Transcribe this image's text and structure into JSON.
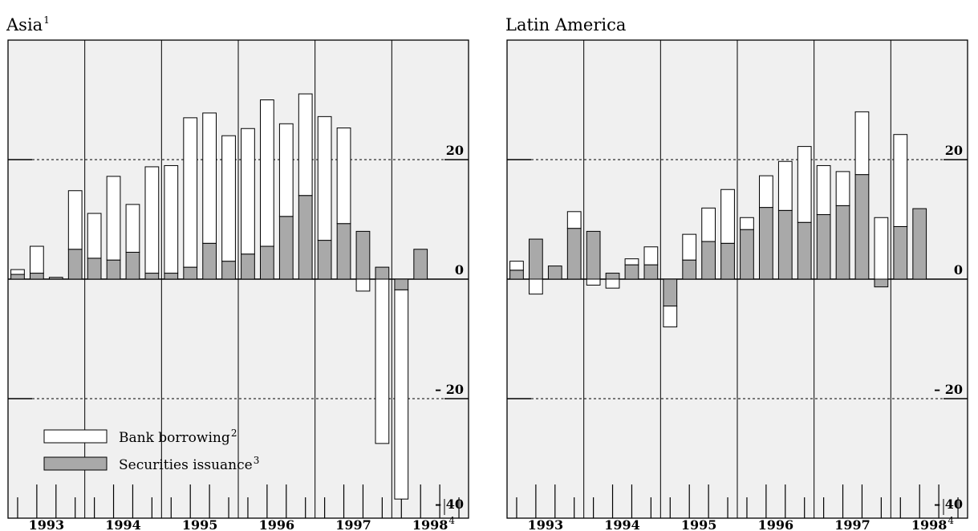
{
  "colors": {
    "plot_bg": "#f0f0f0",
    "bank": "#ffffff",
    "securities": "#a9a9a9",
    "axis": "#000000"
  },
  "legend": {
    "bank_label": "Bank borrowing",
    "bank_sup": "2",
    "sec_label": "Securities issuance",
    "sec_sup": "3"
  },
  "chart_data": [
    {
      "type": "bar",
      "stacked": true,
      "title": "Asia",
      "title_sup": "1",
      "ylim": [
        -40,
        40
      ],
      "yticks": [
        20,
        0,
        -20,
        -40
      ],
      "ytick_labels": [
        "20",
        "0",
        "– 20",
        "– 40"
      ],
      "grid": "dashed at ±20",
      "legend_position": "bottom-left",
      "years": [
        "1993",
        "1994",
        "1995",
        "1996",
        "1997",
        "1998"
      ],
      "year_sups": [
        "",
        "",
        "",
        "",
        "",
        "4"
      ],
      "quarters_per_year": 4,
      "series": [
        {
          "name": "Securities issuance",
          "values": [
            0.8,
            1,
            0.3,
            5,
            3.5,
            3.2,
            4.5,
            1,
            1,
            2,
            6,
            3,
            4.2,
            5.5,
            10.5,
            14,
            6.5,
            9.3,
            8,
            2,
            -1.8,
            5
          ]
        },
        {
          "name": "Bank borrowing",
          "values": [
            0.8,
            4.5,
            0,
            9.8,
            7.5,
            14,
            8,
            17.8,
            18,
            25,
            21.8,
            21,
            21,
            24.5,
            15.5,
            17,
            20.7,
            16,
            -2,
            -27.5,
            -35,
            0
          ]
        }
      ]
    },
    {
      "type": "bar",
      "stacked": true,
      "title": "Latin America",
      "title_sup": "",
      "ylim": [
        -40,
        40
      ],
      "yticks": [
        20,
        0,
        -20,
        -40
      ],
      "ytick_labels": [
        "20",
        "0",
        "– 20",
        "– 40"
      ],
      "grid": "dashed at ±20",
      "years": [
        "1993",
        "1994",
        "1995",
        "1996",
        "1997",
        "1998"
      ],
      "year_sups": [
        "",
        "",
        "",
        "",
        "",
        "4"
      ],
      "quarters_per_year": 4,
      "series": [
        {
          "name": "Securities issuance",
          "values": [
            1.5,
            6.7,
            2.2,
            8.5,
            8,
            1,
            2.4,
            2.4,
            -4.5,
            3.2,
            6.3,
            6,
            8.3,
            12,
            11.5,
            9.5,
            10.8,
            12.3,
            17.5,
            -1.3,
            8.8,
            11.8
          ]
        },
        {
          "name": "Bank borrowing",
          "values": [
            1.5,
            -2.5,
            0,
            2.8,
            -1,
            -1.5,
            1,
            3,
            -3.5,
            4.3,
            5.6,
            9,
            2,
            5.3,
            8.2,
            12.7,
            8.2,
            5.7,
            10.5,
            10.3,
            15.4,
            0
          ]
        }
      ]
    }
  ]
}
